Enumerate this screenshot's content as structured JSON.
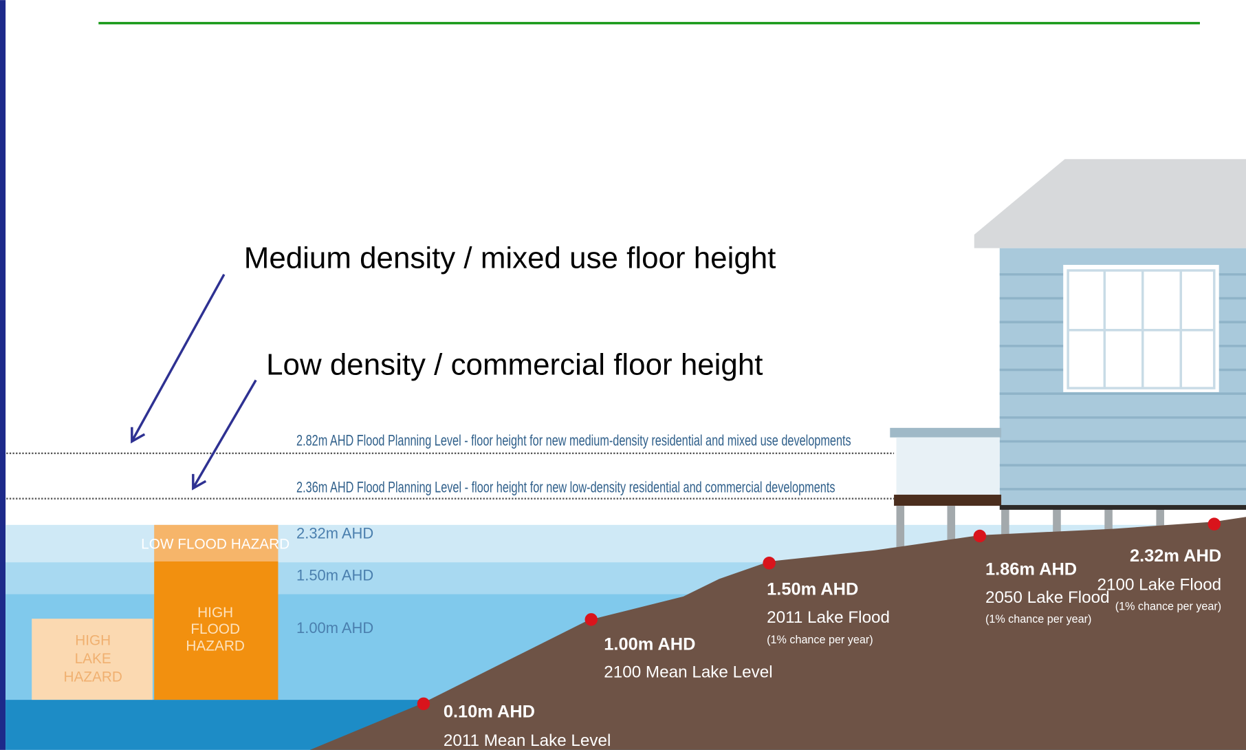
{
  "annotations": [
    "Medium density / mixed use floor height",
    "Low density / commercial floor height"
  ],
  "planning_levels": [
    "2.82m AHD Flood Planning Level - floor height for new medium-density residential and mixed use developments",
    "2.36m AHD Flood Planning Level - floor height for new low-density residential and commercial developments"
  ],
  "water_levels": [
    "2.32m AHD",
    "1.50m AHD",
    "1.00m AHD"
  ],
  "hazards": [
    [
      "LOW FLOOD HAZARD"
    ],
    [
      "HIGH",
      "FLOOD",
      "HAZARD"
    ],
    [
      "HIGH",
      "LAKE",
      "HAZARD"
    ]
  ],
  "markers": [
    {
      "level": "0.10m AHD",
      "label": "2011 Mean Lake Level"
    },
    {
      "level": "1.00m AHD",
      "label": "2100 Mean Lake Level"
    },
    {
      "level": "1.50m AHD",
      "label": "2011 Lake Flood",
      "note": "(1% chance per year)"
    },
    {
      "level": "1.86m AHD",
      "label": "2050 Lake Flood",
      "note": "(1% chance per year)"
    },
    {
      "level": "2.32m AHD",
      "label": "2100 Lake Flood",
      "note": "(1% chance per year)"
    }
  ]
}
